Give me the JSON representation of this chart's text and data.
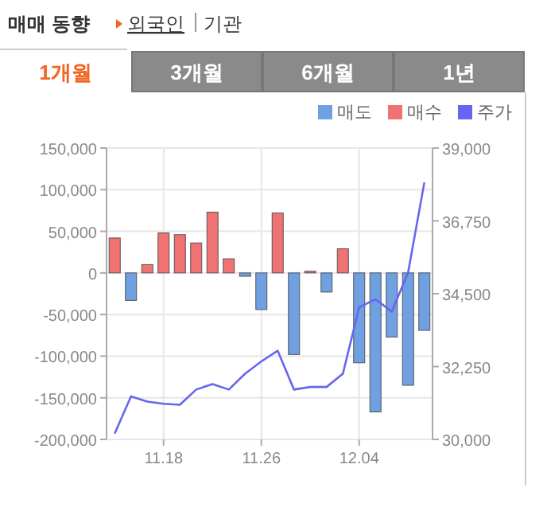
{
  "chart_data": {
    "type": "bar",
    "title": "매매 동향",
    "annotations": [
      "외국인",
      "기관",
      "1개월",
      "3개월",
      "6개월",
      "1년"
    ],
    "categories": [
      null,
      null,
      null,
      "11.18",
      null,
      null,
      null,
      null,
      null,
      "11.26",
      null,
      null,
      null,
      null,
      null,
      "12.04",
      null,
      null,
      null,
      null
    ],
    "series": [
      {
        "name": "매도",
        "color": "#6fa0e2",
        "values": [
          0,
          -33000,
          0,
          0,
          0,
          0,
          0,
          0,
          -4000,
          -44000,
          0,
          -98000,
          0,
          -23000,
          0,
          -108000,
          -167000,
          -77000,
          -135000,
          -69000
        ]
      },
      {
        "name": "매수",
        "color": "#f07272",
        "values": [
          42000,
          0,
          10000,
          48000,
          46000,
          36000,
          73000,
          17000,
          0,
          0,
          72000,
          0,
          2000,
          0,
          29000,
          0,
          0,
          0,
          0,
          0
        ]
      },
      {
        "name": "주가",
        "type": "line",
        "axis": "y2",
        "color": "#6666ee",
        "values": [
          30180,
          31330,
          31170,
          31100,
          31070,
          31540,
          31710,
          31540,
          32030,
          32410,
          32740,
          31540,
          31620,
          31620,
          32030,
          34080,
          34330,
          33950,
          35150,
          37940
        ]
      }
    ],
    "ylim": [
      -200000,
      150000
    ],
    "yticks": [
      {
        "value": -200000,
        "label": "-200,000"
      },
      {
        "value": -150000,
        "label": "-150,000"
      },
      {
        "value": -100000,
        "label": "-100,000"
      },
      {
        "value": -50000,
        "label": "-50,000"
      },
      0,
      {
        "value": 50000,
        "label": "50,000"
      },
      {
        "value": 100000,
        "label": "100,000"
      },
      {
        "value": 150000,
        "label": "150,000"
      }
    ],
    "y2lim": [
      30000,
      39000
    ],
    "y2ticks": [
      {
        "value": 30000,
        "label": "30,000"
      },
      {
        "value": 32250,
        "label": "32,250"
      },
      {
        "value": 34500,
        "label": "34,500"
      },
      {
        "value": 36750,
        "label": "36,750"
      },
      {
        "value": 39000,
        "label": "39,000"
      }
    ],
    "grid": true,
    "legend": "top right"
  }
}
